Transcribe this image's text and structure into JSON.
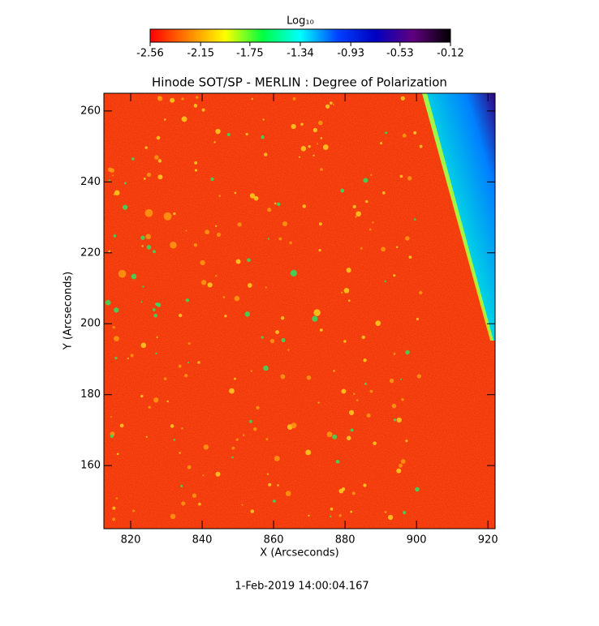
{
  "chart_data": {
    "type": "image",
    "title": "Hinode SOT/SP - MERLIN : Degree of Polarization",
    "xlabel": "X (Arcseconds)",
    "ylabel": "Y (Arcseconds)",
    "xlim": [
      812.5,
      922
    ],
    "xticks": [
      820,
      840,
      860,
      880,
      900,
      920
    ],
    "ylim": [
      142.2,
      265
    ],
    "yticks": [
      160,
      180,
      200,
      220,
      240,
      260
    ],
    "colorbar": {
      "label": "Log₁₀",
      "lim": [
        -2.56,
        -0.12
      ],
      "ticks": [
        -2.56,
        -2.15,
        -1.75,
        -1.34,
        -0.93,
        -0.53,
        -0.12
      ],
      "colors": [
        "#ff0000",
        "#ff8000",
        "#ffff00",
        "#00ff40",
        "#00ffff",
        "#0040ff",
        "#0000c0",
        "#600080",
        "#000000"
      ]
    },
    "annotation": "1-Feb-2019 14:00:04.167"
  }
}
